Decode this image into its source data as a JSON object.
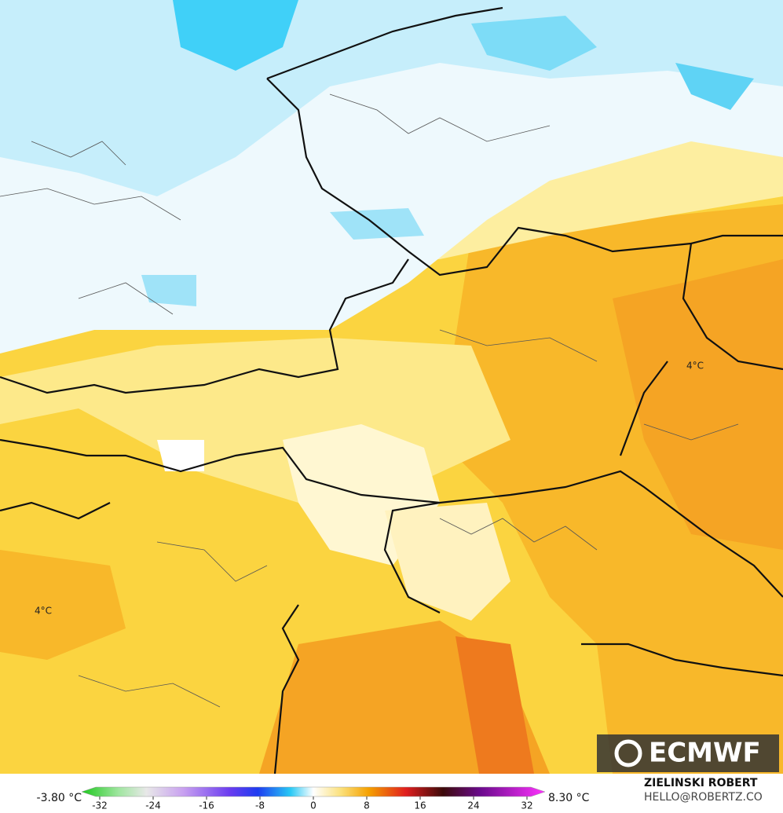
{
  "map": {
    "labels": [
      "4°C",
      "4°C"
    ],
    "logo": "ECMWF",
    "legend": {
      "min_label": "-3.80 °C",
      "max_label": "8.30 °C",
      "ticks": [
        -32,
        -24,
        -16,
        -8,
        0,
        8,
        16,
        24,
        32
      ]
    },
    "credit": {
      "name": "ZIELINSKI ROBERT",
      "email": "HELLO@ROBERTZ.CO"
    }
  }
}
